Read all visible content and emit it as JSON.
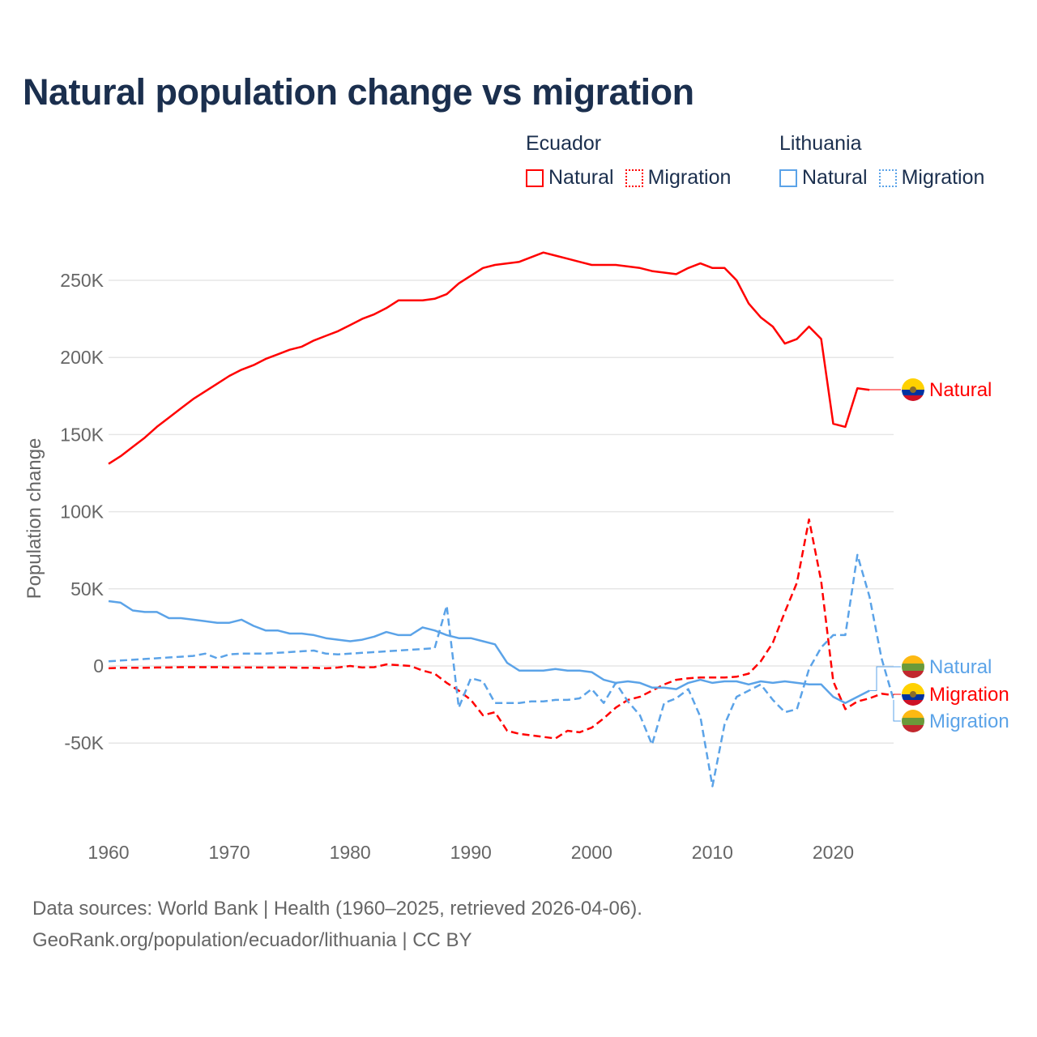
{
  "title": "Natural population change vs migration",
  "legend": {
    "groups": [
      {
        "name": "Ecuador",
        "color": "#ff0000",
        "items": [
          "Natural",
          "Migration"
        ]
      },
      {
        "name": "Lithuania",
        "color": "#5ba3e8",
        "items": [
          "Natural",
          "Migration"
        ]
      }
    ]
  },
  "footer": {
    "line1": "Data sources: World Bank | Health (1960–2025, retrieved 2026-04-06).",
    "line2": "GeoRank.org/population/ecuador/lithuania | CC BY"
  },
  "chart_data": {
    "type": "line",
    "title": "Natural population change vs migration",
    "xlabel": "",
    "ylabel": "Population change",
    "xlim": [
      1960,
      2025
    ],
    "ylim": [
      -100000,
      290000
    ],
    "x_ticks": [
      1960,
      1970,
      1980,
      1990,
      2000,
      2010,
      2020
    ],
    "y_ticks": [
      {
        "v": -50000,
        "label": "-50K"
      },
      {
        "v": 0,
        "label": "0"
      },
      {
        "v": 50000,
        "label": "50K"
      },
      {
        "v": 100000,
        "label": "100K"
      },
      {
        "v": 150000,
        "label": "150K"
      },
      {
        "v": 200000,
        "label": "200K"
      },
      {
        "v": 250000,
        "label": "250K"
      }
    ],
    "grid": true,
    "legend_position": "top-right",
    "series": [
      {
        "name": "Ecuador Natural",
        "label": "Natural",
        "color": "#ff0000",
        "dash": false,
        "start": 1960,
        "values": [
          131000,
          136000,
          142000,
          148000,
          155000,
          161000,
          167000,
          173000,
          178000,
          183000,
          188000,
          192000,
          195000,
          199000,
          202000,
          205000,
          207000,
          211000,
          214000,
          217000,
          221000,
          225000,
          228000,
          232000,
          237000,
          237000,
          237000,
          238000,
          241000,
          248000,
          253000,
          258000,
          260000,
          261000,
          262000,
          265000,
          268000,
          266000,
          264000,
          262000,
          260000,
          260000,
          260000,
          259000,
          258000,
          256000,
          255000,
          254000,
          258000,
          261000,
          258000,
          258000,
          250000,
          235000,
          226000,
          220000,
          209000,
          212000,
          220000,
          212000,
          157000,
          155000,
          180000,
          179000
        ]
      },
      {
        "name": "Ecuador Migration",
        "label": "Migration",
        "color": "#ff0000",
        "dash": true,
        "start": 1960,
        "values": [
          -1500,
          -1200,
          -1200,
          -1200,
          -1000,
          -1000,
          -800,
          -800,
          -800,
          -800,
          -1000,
          -1000,
          -1000,
          -1000,
          -1000,
          -1000,
          -1200,
          -1200,
          -1500,
          -1000,
          0,
          -1000,
          -800,
          1000,
          500,
          0,
          -3000,
          -5000,
          -11000,
          -16000,
          -22000,
          -32000,
          -30000,
          -42000,
          -44000,
          -45000,
          -46000,
          -47000,
          -42000,
          -43000,
          -40000,
          -34000,
          -27000,
          -22000,
          -20000,
          -16000,
          -12000,
          -9000,
          -8000,
          -7500,
          -7500,
          -7500,
          -7000,
          -5000,
          3000,
          15000,
          35000,
          54000,
          95000,
          55000,
          -10000,
          -28000,
          -23000,
          -21000,
          -18000,
          -19000
        ]
      },
      {
        "name": "Lithuania Natural",
        "label": "Natural",
        "color": "#5ba3e8",
        "dash": false,
        "start": 1960,
        "values": [
          42000,
          41000,
          36000,
          35000,
          35000,
          31000,
          31000,
          30000,
          29000,
          28000,
          28000,
          30000,
          26000,
          23000,
          23000,
          21000,
          21000,
          20000,
          18000,
          17000,
          16000,
          17000,
          19000,
          22000,
          20000,
          20000,
          25000,
          23000,
          20000,
          18000,
          18000,
          16000,
          14000,
          2000,
          -3000,
          -3000,
          -3000,
          -2000,
          -3000,
          -3000,
          -4000,
          -9000,
          -11000,
          -10000,
          -11000,
          -14000,
          -14000,
          -15000,
          -11000,
          -9000,
          -11000,
          -10000,
          -10000,
          -12000,
          -10000,
          -11000,
          -10000,
          -11000,
          -12000,
          -12000,
          -20000,
          -24000,
          -20000,
          -16000
        ]
      },
      {
        "name": "Lithuania Migration",
        "label": "Migration",
        "color": "#5ba3e8",
        "dash": true,
        "start": 1960,
        "values": [
          3000,
          3500,
          4000,
          4500,
          5000,
          5500,
          6000,
          6500,
          8000,
          5000,
          7500,
          8000,
          8000,
          8000,
          8500,
          9000,
          9500,
          10000,
          8000,
          7500,
          8000,
          8500,
          9000,
          9500,
          10000,
          10500,
          11000,
          11500,
          39000,
          -27000,
          -8000,
          -10000,
          -24000,
          -24000,
          -24000,
          -23000,
          -23000,
          -22000,
          -22000,
          -21000,
          -15000,
          -24000,
          -11000,
          -23000,
          -32000,
          -51000,
          -24000,
          -21000,
          -15000,
          -33000,
          -78000,
          -38000,
          -20000,
          -16000,
          -12000,
          -22000,
          -30000,
          -28000,
          -2000,
          12000,
          20000,
          20000,
          72000,
          45000,
          5000,
          -22000
        ]
      }
    ]
  }
}
